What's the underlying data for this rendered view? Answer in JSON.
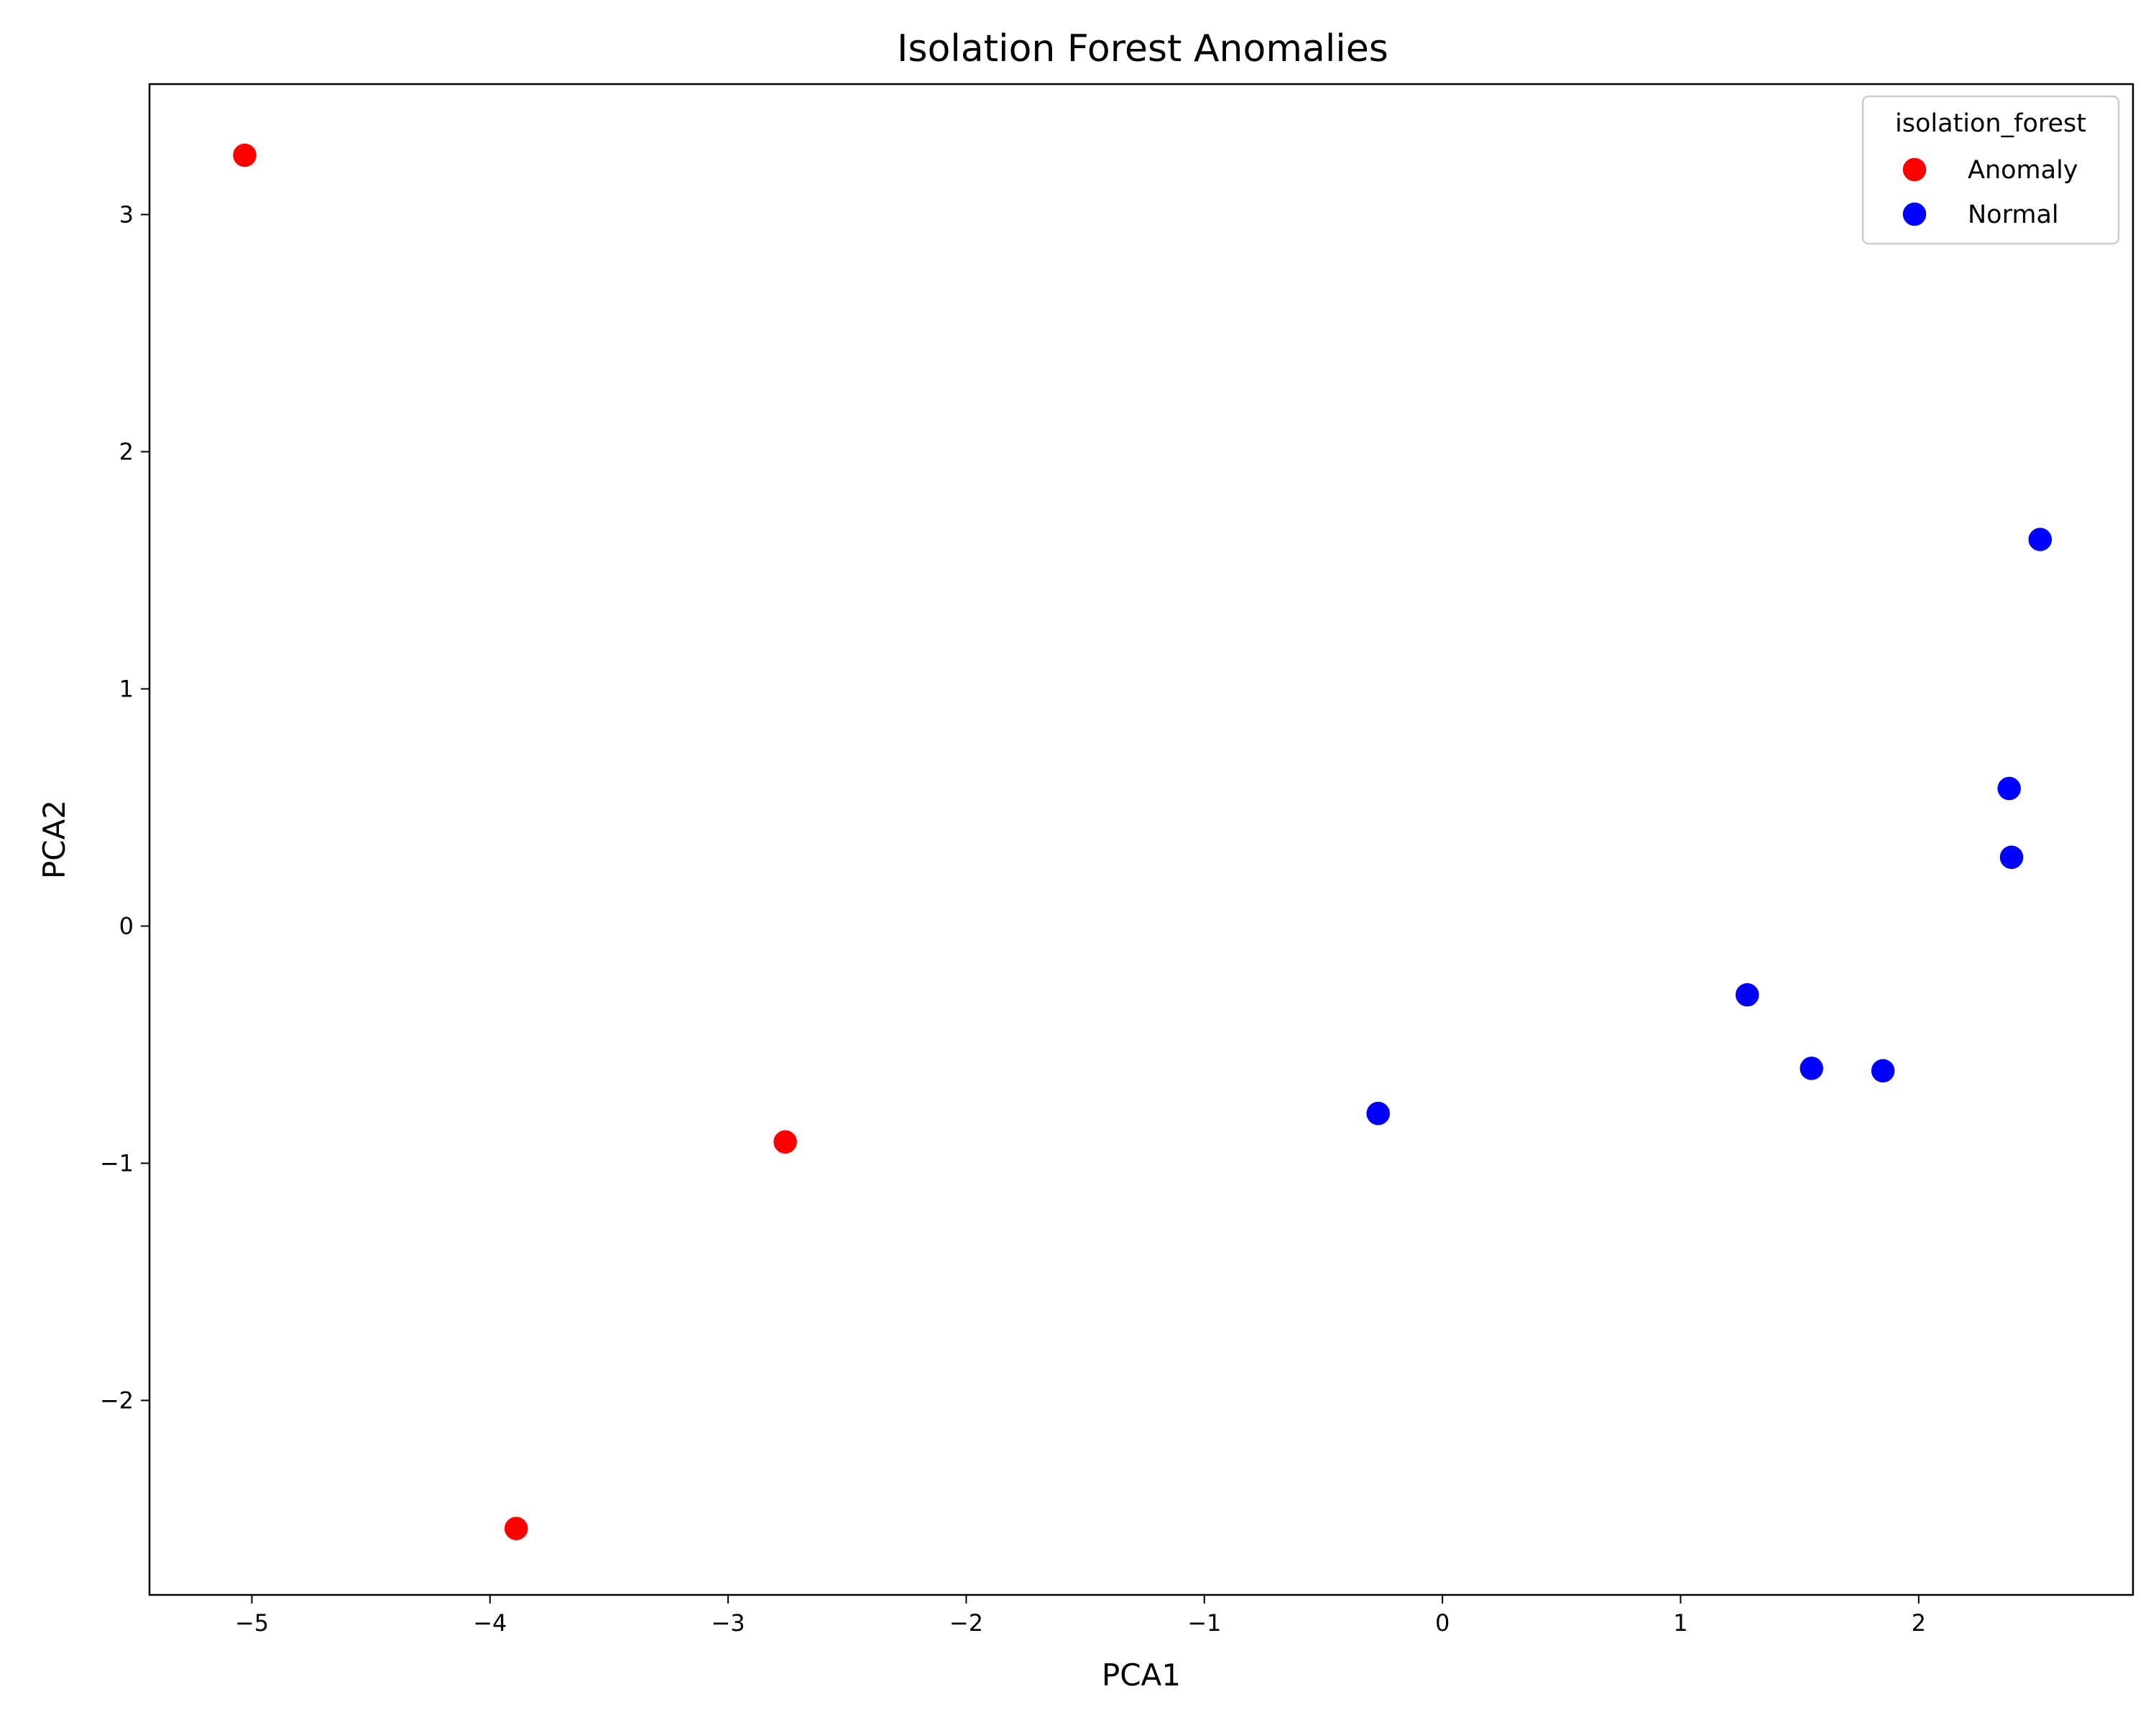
{
  "chart_data": {
    "type": "scatter",
    "title": "Isolation Forest Anomalies",
    "xlabel": "PCA1",
    "ylabel": "PCA2",
    "xlim": [
      -5.43,
      2.9
    ],
    "ylim": [
      -2.82,
      3.55
    ],
    "xticks": [
      -5,
      -4,
      -3,
      -2,
      -1,
      0,
      1,
      2
    ],
    "yticks": [
      -2,
      -1,
      0,
      1,
      2,
      3
    ],
    "grid": false,
    "legend": {
      "title": "isolation_forest",
      "position": "top-right"
    },
    "series": [
      {
        "name": "Anomaly",
        "color": "#ff0000",
        "points": [
          {
            "x": -5.03,
            "y": 3.25
          },
          {
            "x": -3.89,
            "y": -2.54
          },
          {
            "x": -2.76,
            "y": -0.91
          }
        ]
      },
      {
        "name": "Normal",
        "color": "#0000ff",
        "points": [
          {
            "x": -0.27,
            "y": -0.79
          },
          {
            "x": 1.28,
            "y": -0.29
          },
          {
            "x": 1.55,
            "y": -0.6
          },
          {
            "x": 1.85,
            "y": -0.61
          },
          {
            "x": 2.38,
            "y": 0.58
          },
          {
            "x": 2.39,
            "y": 0.29
          },
          {
            "x": 2.51,
            "y": 1.63
          }
        ]
      }
    ]
  }
}
